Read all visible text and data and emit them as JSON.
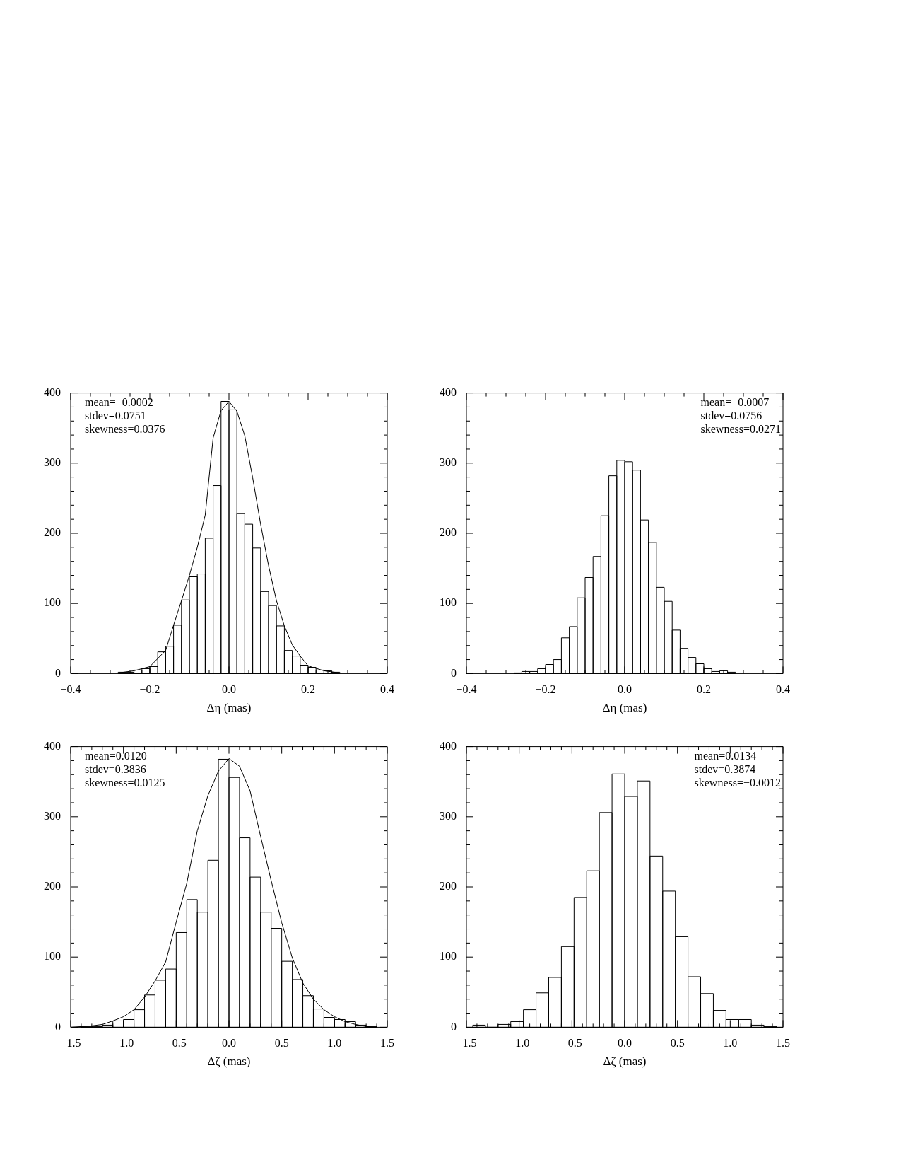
{
  "chart_data": [
    {
      "type": "histogram",
      "xlabel": "Δη (mas)",
      "annotations": [
        "mean=−0.0002",
        "stdev=0.0751",
        "skewness=0.0376"
      ],
      "xlim": [
        -0.4,
        0.4
      ],
      "xticks": [
        {
          "value": -0.4,
          "label": "−0.4"
        },
        {
          "value": -0.2,
          "label": "−0.2"
        },
        {
          "value": 0,
          "label": "0.0"
        },
        {
          "value": 0.2,
          "label": "0.2"
        },
        {
          "value": 0.4,
          "label": "0.4"
        }
      ],
      "ylim": [
        0,
        400
      ],
      "yticks": [
        0,
        100,
        200,
        300,
        400
      ],
      "series": [
        {
          "type": "histogram",
          "color": "#000000",
          "bins": [
            -0.28,
            -0.26,
            -0.24,
            -0.22,
            -0.2,
            -0.18,
            -0.16,
            -0.14,
            -0.12,
            -0.1,
            -0.08,
            -0.06,
            -0.04,
            -0.02,
            0,
            0.02,
            0.04,
            0.06,
            0.08,
            0.1,
            0.12,
            0.14,
            0.16,
            0.18,
            0.2,
            0.22,
            0.24,
            0.26,
            0.28
          ],
          "values": [
            2,
            2,
            5,
            7,
            10,
            31,
            39,
            69,
            105,
            138,
            142,
            193,
            268,
            388,
            376,
            228,
            213,
            179,
            117,
            97,
            68,
            33,
            25,
            12,
            9,
            5,
            4,
            2
          ]
        },
        {
          "type": "line",
          "color": "#000000",
          "x": [
            -0.28,
            -0.24,
            -0.2,
            -0.16,
            -0.14,
            -0.12,
            -0.1,
            -0.08,
            -0.06,
            -0.04,
            -0.02,
            0,
            0.02,
            0.04,
            0.06,
            0.08,
            0.1,
            0.12,
            0.14,
            0.16,
            0.18,
            0.2,
            0.24,
            0.28
          ],
          "values": [
            1,
            4,
            10,
            33,
            69,
            104,
            140,
            180,
            226,
            336,
            375,
            388,
            374,
            339,
            279,
            213,
            154,
            104,
            68,
            41,
            25,
            11,
            4,
            1
          ]
        }
      ]
    },
    {
      "type": "histogram",
      "xlabel": "Δη (mas)",
      "annotations": [
        "mean=−0.0007",
        "stdev=0.0756",
        "skewness=0.0271"
      ],
      "xlim": [
        -0.4,
        0.4
      ],
      "xticks": [
        {
          "value": -0.4,
          "label": "−0.4"
        },
        {
          "value": -0.2,
          "label": "−0.2"
        },
        {
          "value": 0,
          "label": "0.0"
        },
        {
          "value": 0.2,
          "label": "0.2"
        },
        {
          "value": 0.4,
          "label": "0.4"
        }
      ],
      "ylim": [
        0,
        400
      ],
      "yticks": [
        0,
        100,
        200,
        300,
        400
      ],
      "color": "#000000",
      "bins": [
        -0.28,
        -0.26,
        -0.24,
        -0.22,
        -0.2,
        -0.18,
        -0.16,
        -0.14,
        -0.12,
        -0.1,
        -0.08,
        -0.06,
        -0.04,
        -0.02,
        0,
        0.02,
        0.04,
        0.06,
        0.08,
        0.1,
        0.12,
        0.14,
        0.16,
        0.18,
        0.2,
        0.22,
        0.24,
        0.26,
        0.28
      ],
      "values": [
        1,
        3,
        3,
        7,
        13,
        20,
        51,
        67,
        108,
        137,
        167,
        225,
        282,
        304,
        302,
        290,
        219,
        187,
        123,
        103,
        62,
        36,
        23,
        14,
        7,
        3,
        4,
        2
      ]
    },
    {
      "type": "histogram",
      "xlabel": "Δζ (mas)",
      "annotations": [
        "mean=0.0120",
        "stdev=0.3836",
        "skewness=0.0125"
      ],
      "xlim": [
        -1.5,
        1.5
      ],
      "xticks": [
        {
          "value": -1.5,
          "label": "−1.5"
        },
        {
          "value": -1,
          "label": "−1.0"
        },
        {
          "value": -0.5,
          "label": "−0.5"
        },
        {
          "value": 0,
          "label": "0.0"
        },
        {
          "value": 0.5,
          "label": "0.5"
        },
        {
          "value": 1,
          "label": "1.0"
        },
        {
          "value": 1.5,
          "label": "1.5"
        }
      ],
      "ylim": [
        0,
        400
      ],
      "yticks": [
        0,
        100,
        200,
        300,
        400
      ],
      "series": [
        {
          "type": "histogram",
          "color": "#000000",
          "bins": [
            -1.4,
            -1.3,
            -1.2,
            -1.1,
            -1,
            -0.9,
            -0.8,
            -0.7,
            -0.6,
            -0.5,
            -0.4,
            -0.3,
            -0.2,
            -0.1,
            0,
            0.1,
            0.2,
            0.3,
            0.4,
            0.5,
            0.6,
            0.7,
            0.8,
            0.9,
            1,
            1.1,
            1.2,
            1.3,
            1.4
          ],
          "values": [
            1,
            1,
            3,
            9,
            11,
            25,
            46,
            67,
            83,
            135,
            182,
            164,
            238,
            382,
            356,
            270,
            214,
            164,
            141,
            94,
            68,
            45,
            26,
            14,
            11,
            8,
            3,
            1
          ]
        },
        {
          "type": "line",
          "color": "#000000",
          "x": [
            -1.5,
            -1.4,
            -1.3,
            -1.2,
            -1.1,
            -1,
            -0.9,
            -0.8,
            -0.7,
            -0.6,
            -0.5,
            -0.4,
            -0.3,
            -0.2,
            -0.1,
            0,
            0.1,
            0.2,
            0.3,
            0.4,
            0.5,
            0.6,
            0.7,
            0.8,
            0.9,
            1,
            1.1,
            1.2,
            1.3,
            1.4
          ],
          "values": [
            0,
            1,
            2,
            4,
            9,
            15,
            25,
            43,
            66,
            93,
            150,
            205,
            280,
            330,
            365,
            383,
            372,
            337,
            272,
            209,
            149,
            99,
            63,
            40,
            25,
            15,
            8,
            4,
            1,
            0
          ]
        }
      ]
    },
    {
      "type": "histogram",
      "xlabel": "Δζ (mas)",
      "annotations": [
        "mean=0.0134",
        "stdev=0.3874",
        "skewness=−0.0012"
      ],
      "xlim": [
        -1.5,
        1.5
      ],
      "xticks": [
        {
          "value": -1.5,
          "label": "−1.5"
        },
        {
          "value": -1,
          "label": "−1.0"
        },
        {
          "value": -0.5,
          "label": "−0.5"
        },
        {
          "value": 0,
          "label": "0.0"
        },
        {
          "value": 0.5,
          "label": "0.5"
        },
        {
          "value": 1,
          "label": "1.0"
        },
        {
          "value": 1.5,
          "label": "1.5"
        }
      ],
      "ylim": [
        0,
        400
      ],
      "yticks": [
        0,
        100,
        200,
        300,
        400
      ],
      "color": "#000000",
      "bins": [
        -1.44,
        -1.32,
        -1.2,
        -1.08,
        -0.96,
        -0.84,
        -0.72,
        -0.6,
        -0.48,
        -0.36,
        -0.24,
        -0.12,
        0,
        0.12,
        0.24,
        0.36,
        0.48,
        0.6,
        0.72,
        0.84,
        0.96,
        1.08,
        1.2,
        1.32,
        1.44
      ],
      "values": [
        3,
        0,
        4,
        8,
        25,
        49,
        71,
        115,
        185,
        223,
        306,
        361,
        329,
        351,
        244,
        194,
        129,
        72,
        48,
        24,
        11,
        11,
        3,
        1
      ]
    }
  ]
}
